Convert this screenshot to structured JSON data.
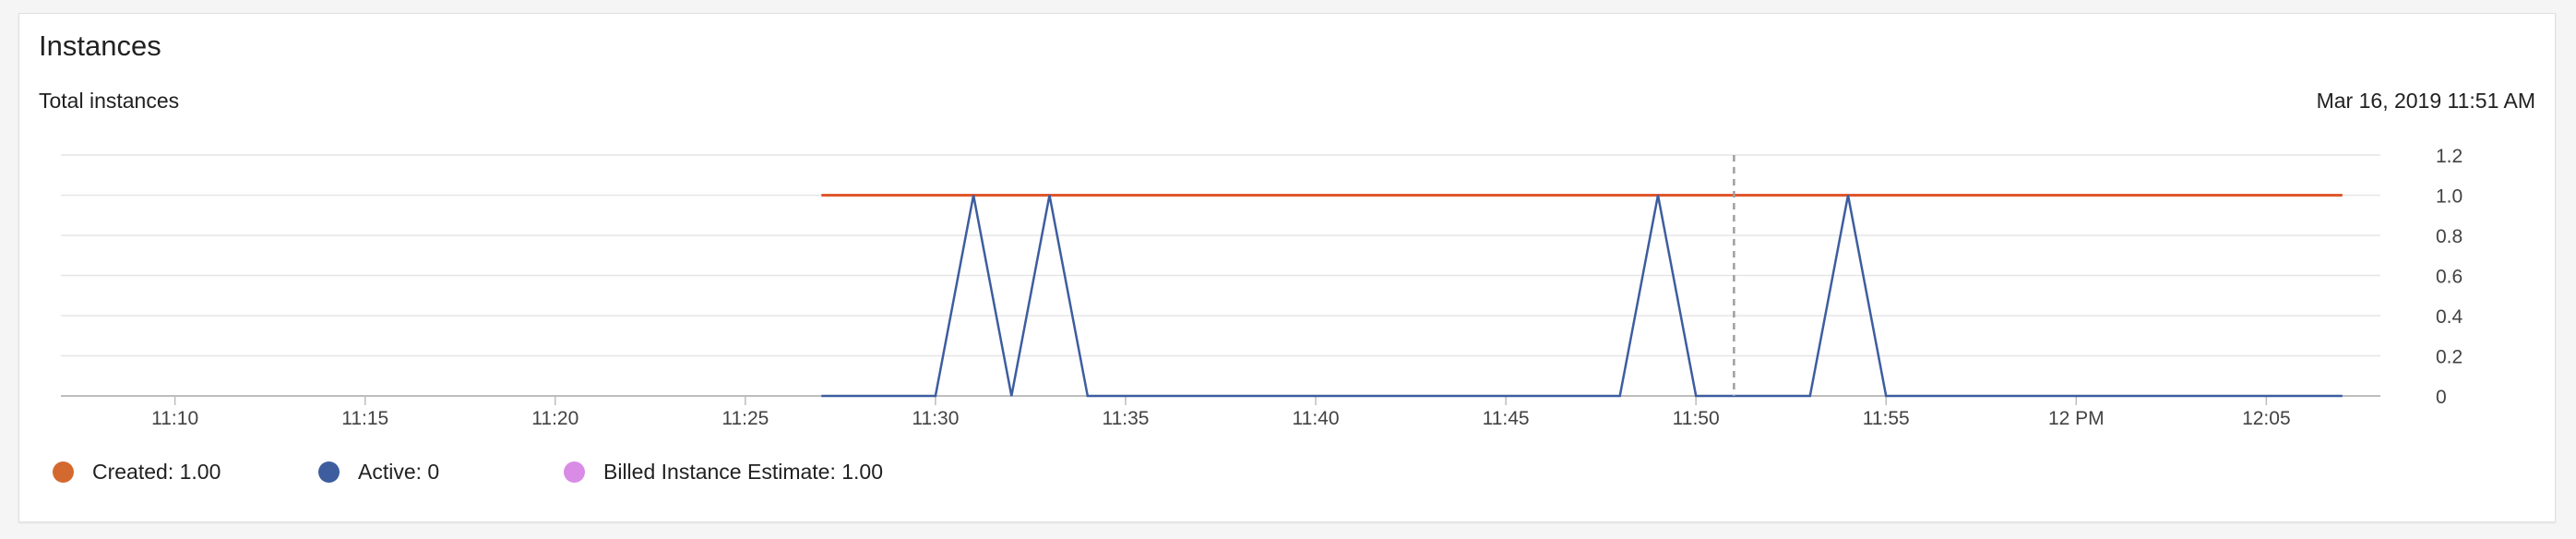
{
  "header": {
    "title": "Instances",
    "subtitle": "Total instances",
    "timestamp": "Mar 16, 2019 11:51 AM"
  },
  "legend": [
    {
      "label": "Created: 1.00",
      "color": "#d4692f"
    },
    {
      "label": "Active: 0",
      "color": "#3d5d9f"
    },
    {
      "label": "Billed Instance Estimate: 1.00",
      "color": "#d98ce6"
    }
  ],
  "chart_data": {
    "type": "line",
    "xlabel": "",
    "ylabel": "",
    "x_unit": "minutes",
    "x_domain": [
      "11:07",
      "12:08"
    ],
    "ylim": [
      0,
      1.2
    ],
    "y_ticks": [
      0,
      0.2,
      0.4,
      0.6,
      0.8,
      1.0,
      1.2
    ],
    "y_tick_labels": [
      "0",
      "0.2",
      "0.4",
      "0.6",
      "0.8",
      "1.0",
      "1.2"
    ],
    "x_ticks": [
      "11:10",
      "11:15",
      "11:20",
      "11:25",
      "11:30",
      "11:35",
      "11:40",
      "11:45",
      "11:50",
      "11:55",
      "12:00",
      "12:05"
    ],
    "x_tick_labels": [
      "11:10",
      "11:15",
      "11:20",
      "11:25",
      "11:30",
      "11:35",
      "11:40",
      "11:45",
      "11:50",
      "11:55",
      "12 PM",
      "12:05"
    ],
    "cursor_time": "11:51",
    "grid": true,
    "legend_position": "bottom-left",
    "series": [
      {
        "color": "#e0572d",
        "points": [
          [
            "11:27",
            1
          ],
          [
            "12:07",
            1
          ]
        ]
      },
      {
        "color": "#3d5d9f",
        "points": [
          [
            "11:27",
            0
          ],
          [
            "11:30",
            0
          ],
          [
            "11:31",
            1
          ],
          [
            "11:32",
            0
          ],
          [
            "11:33",
            1
          ],
          [
            "11:34",
            0
          ],
          [
            "11:48",
            0
          ],
          [
            "11:49",
            1
          ],
          [
            "11:50",
            0
          ],
          [
            "11:53",
            0
          ],
          [
            "11:54",
            1
          ],
          [
            "11:55",
            0
          ],
          [
            "12:07",
            0
          ]
        ]
      }
    ]
  }
}
